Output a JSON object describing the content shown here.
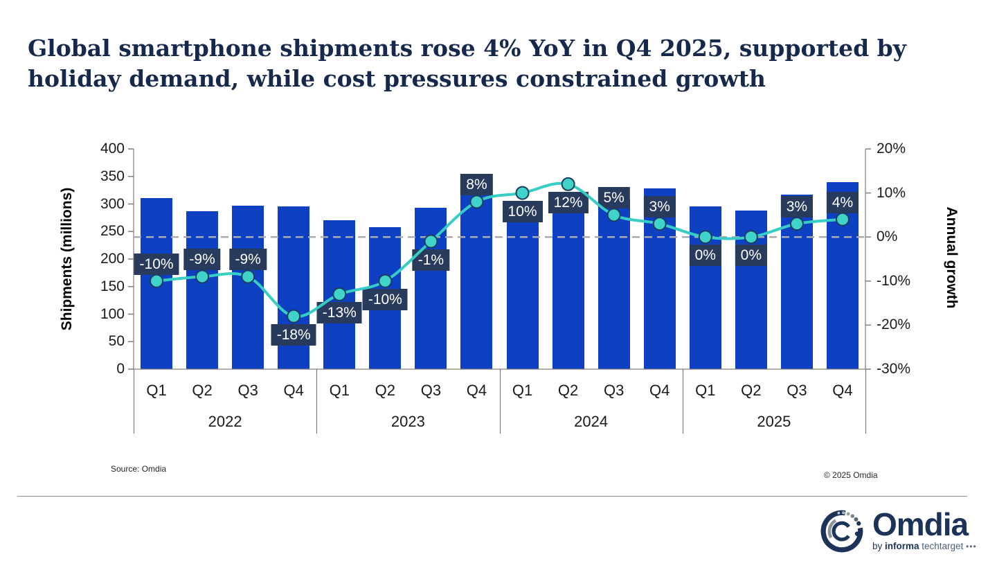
{
  "title": {
    "line1": "Global smartphone shipments rose 4% YoY in Q4 2025, supported by",
    "line2": "holiday demand, while cost pressures constrained growth"
  },
  "chart_data": {
    "type": "combo",
    "categories": [
      "Q1",
      "Q2",
      "Q3",
      "Q4",
      "Q1",
      "Q2",
      "Q3",
      "Q4",
      "Q1",
      "Q2",
      "Q3",
      "Q4",
      "Q1",
      "Q2",
      "Q3",
      "Q4"
    ],
    "year_groups": [
      "2022",
      "2023",
      "2024",
      "2025"
    ],
    "series": [
      {
        "name": "Shipments (millions)",
        "type": "bar",
        "color": "#0d40c3",
        "values": [
          311,
          287,
          297,
          296,
          270,
          258,
          293,
          320,
          297,
          289,
          308,
          328,
          296,
          288,
          317,
          340
        ]
      },
      {
        "name": "Annual growth",
        "type": "line",
        "color": "#35cdc4",
        "marker_fill": "#3fd4c9",
        "marker_stroke": "#1e3c5e",
        "values": [
          -10,
          -9,
          -9,
          -18,
          -13,
          -10,
          -1,
          8,
          10,
          12,
          5,
          3,
          0,
          0,
          3,
          4
        ],
        "labels": [
          "-10%",
          "-9%",
          "-9%",
          "-18%",
          "-13%",
          "-10%",
          "-1%",
          "8%",
          "10%",
          "12%",
          "5%",
          "3%",
          "0%",
          "0%",
          "3%",
          "4%"
        ],
        "label_positions": [
          "above",
          "above",
          "above",
          "below",
          "below",
          "below",
          "below",
          "above",
          "below",
          "below",
          "above",
          "above",
          "below",
          "below",
          "above",
          "above"
        ],
        "label_box_color": "#293b5c"
      }
    ],
    "left_axis": {
      "label": "Shipments (millions)",
      "min": 0,
      "max": 400,
      "tick_values": [
        400,
        350,
        300,
        250,
        200,
        150,
        100,
        50,
        0
      ],
      "tick_labels": [
        "400",
        "350",
        "300",
        "250",
        "200",
        "150",
        "100",
        "50",
        "0"
      ]
    },
    "right_axis": {
      "label": "Annual growth",
      "min": -30,
      "max": 20,
      "tick_values": [
        20,
        10,
        0,
        -10,
        -20,
        -30
      ],
      "tick_labels": [
        "20%",
        "10%",
        "0%",
        "-10%",
        "-20%",
        "-30%"
      ]
    },
    "zero_line_value": 0,
    "grid": "zero-dashed-only",
    "legend": "none"
  },
  "footer": {
    "source": "Source: Omdia",
    "copyright": "© 2025 Omdia"
  },
  "logo": {
    "wordmark": "Omdia",
    "byline_prefix": "by ",
    "byline_bold": "informa",
    "byline_suffix": " techtarget ",
    "byline_dots": "•••"
  },
  "colors": {
    "bar_blue": "#0d40c3",
    "line_teal": "#35cdc4",
    "label_navy": "#293b5c",
    "title_navy": "#16294d",
    "zero_line_gray": "#ababab"
  }
}
